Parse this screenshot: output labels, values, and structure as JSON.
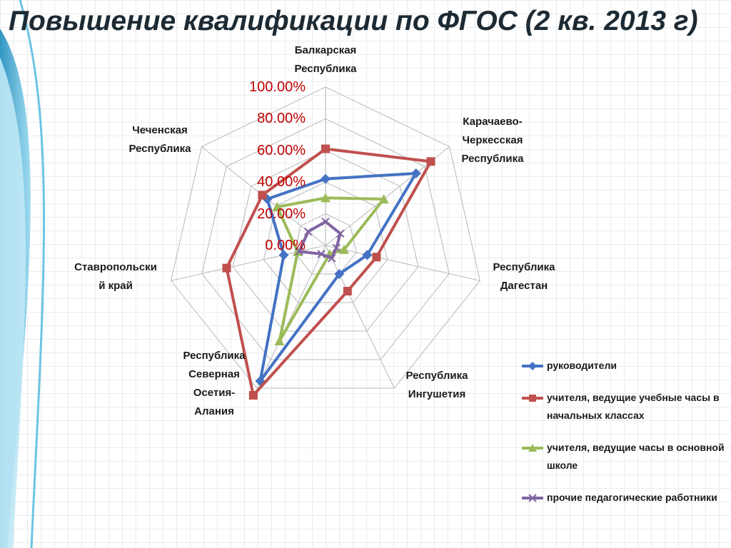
{
  "title": "Повышение квалификации по ФГОС (2 кв. 2013 г)",
  "chart_data": {
    "type": "radar",
    "categories": [
      "Кабардино-Балкарская Республика",
      "Карачаево-Черкесская Республика",
      "Республика Дагестан",
      "Республика Ингушетия",
      "Республика Северная Осетия-Алания",
      "Ставропольский край",
      "Чеченская Республика"
    ],
    "category_label_lines": [
      [
        "Балкарская",
        "Республика"
      ],
      [
        "Карачаево-",
        "Черкесская",
        "Республика"
      ],
      [
        "Республика",
        "Дагестан"
      ],
      [
        "Республика",
        "Ингушетия"
      ],
      [
        "Республика",
        "Северная",
        "Осетия-",
        "Алания"
      ],
      [
        "Ставропольски",
        "й край"
      ],
      [
        "Чеченская",
        "Республика"
      ]
    ],
    "ticks": [
      "0.00%",
      "20.00%",
      "40.00%",
      "60.00%",
      "80.00%",
      "100.00%"
    ],
    "ylim": [
      0,
      1
    ],
    "series": [
      {
        "name": "руководители",
        "color": "#4472c4",
        "marker": "diamond",
        "values": [
          0.42,
          0.73,
          0.27,
          0.2,
          0.95,
          0.27,
          0.47
        ]
      },
      {
        "name": "учителя, ведущие учебные часы в начальных классах",
        "color": "#c0504d",
        "marker": "square",
        "values": [
          0.61,
          0.85,
          0.33,
          0.32,
          1.05,
          0.64,
          0.51
        ]
      },
      {
        "name": "учителя, ведущие часы в основной школе",
        "color": "#9bbb59",
        "marker": "triangle",
        "values": [
          0.3,
          0.47,
          0.12,
          0.06,
          0.67,
          0.18,
          0.39
        ]
      },
      {
        "name": "прочие педагогические работники",
        "color": "#8064a2",
        "marker": "x",
        "values": [
          0.15,
          0.12,
          0.07,
          0.09,
          0.06,
          0.17,
          0.14
        ]
      }
    ],
    "legend_position": "right"
  }
}
